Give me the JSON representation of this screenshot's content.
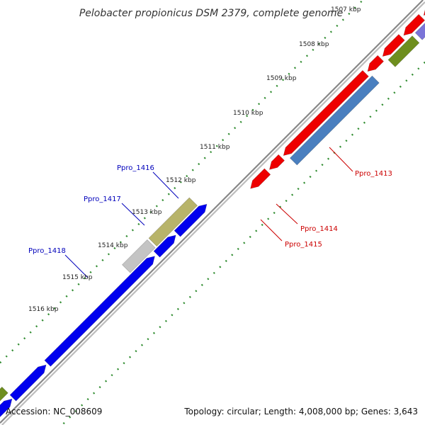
{
  "title": "Pelobacter propionicus DSM 2379, complete genome",
  "accession": "Accession: NC_008609",
  "summary": "Topology: circular; Length: 4,008,000 bp; Genes: 3,643",
  "colors": {
    "forward_gene": "#0000ee",
    "reverse_gene": "#ee0000",
    "steel_gene": "#4a7fbf",
    "olive_gene": "#6e8e1e",
    "khaki_gene": "#b8b46a",
    "gray_gene": "#c4c4c4",
    "lavender_gene": "#7b74d8",
    "backbone": "#777777",
    "tick_dots": "#2e8b2e",
    "forward_label": "#0000bb",
    "reverse_label": "#cc0000"
  },
  "tick_labels": [
    "1507 kbp",
    "1508 kbp",
    "1509 kbp",
    "1510 kbp",
    "1511 kbp",
    "1512 kbp",
    "1513 kbp",
    "1514 kbp",
    "1515 kbp",
    "1516 kbp"
  ],
  "genes": [
    {
      "label": "Ppro_1413",
      "strand": "reverse",
      "color": "#4a7fbf"
    },
    {
      "label": "Ppro_1414",
      "strand": "reverse",
      "color": "#ee0000"
    },
    {
      "label": "Ppro_1415",
      "strand": "reverse",
      "color": "#ee0000"
    },
    {
      "label": "Ppro_1416",
      "strand": "forward",
      "color": "#b8b46a"
    },
    {
      "label": "Ppro_1417",
      "strand": "forward",
      "color": "#c4c4c4"
    },
    {
      "label": "Ppro_1418",
      "strand": "forward",
      "color": "#0000ee"
    }
  ]
}
